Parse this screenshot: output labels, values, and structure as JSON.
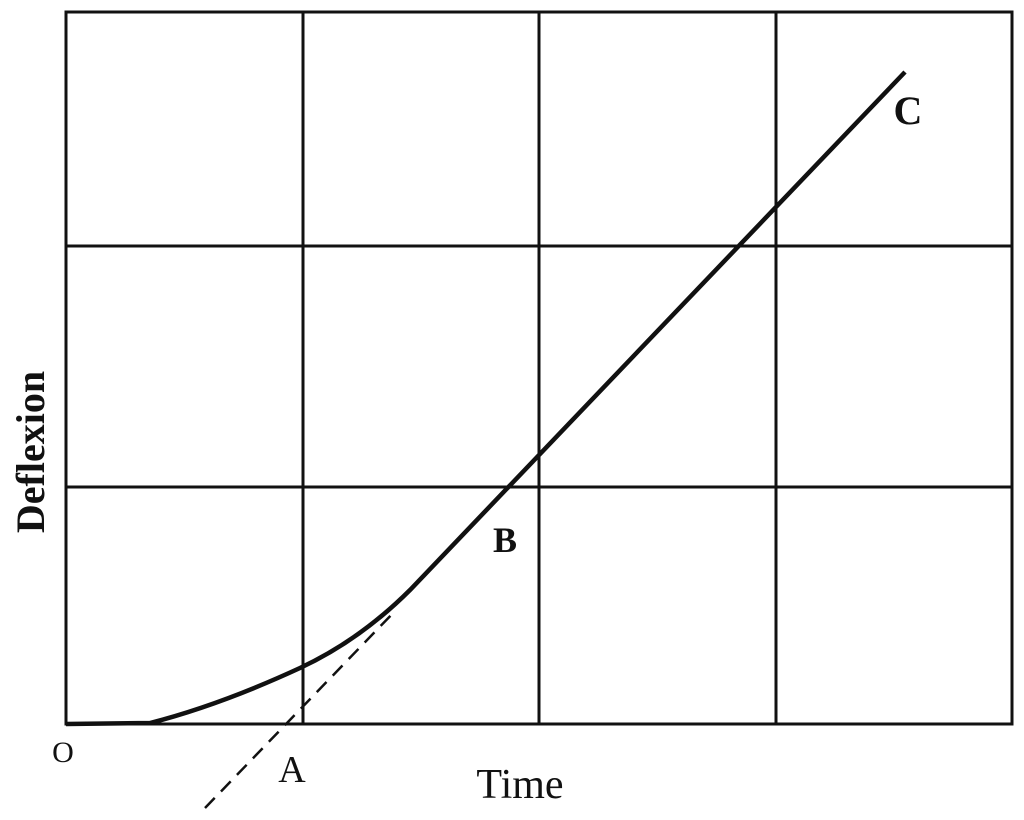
{
  "axes": {
    "x_label": "Time",
    "y_label": "Deflexion",
    "origin": "O"
  },
  "points": [
    {
      "label": "A"
    },
    {
      "label": "B"
    },
    {
      "label": "C"
    }
  ]
}
